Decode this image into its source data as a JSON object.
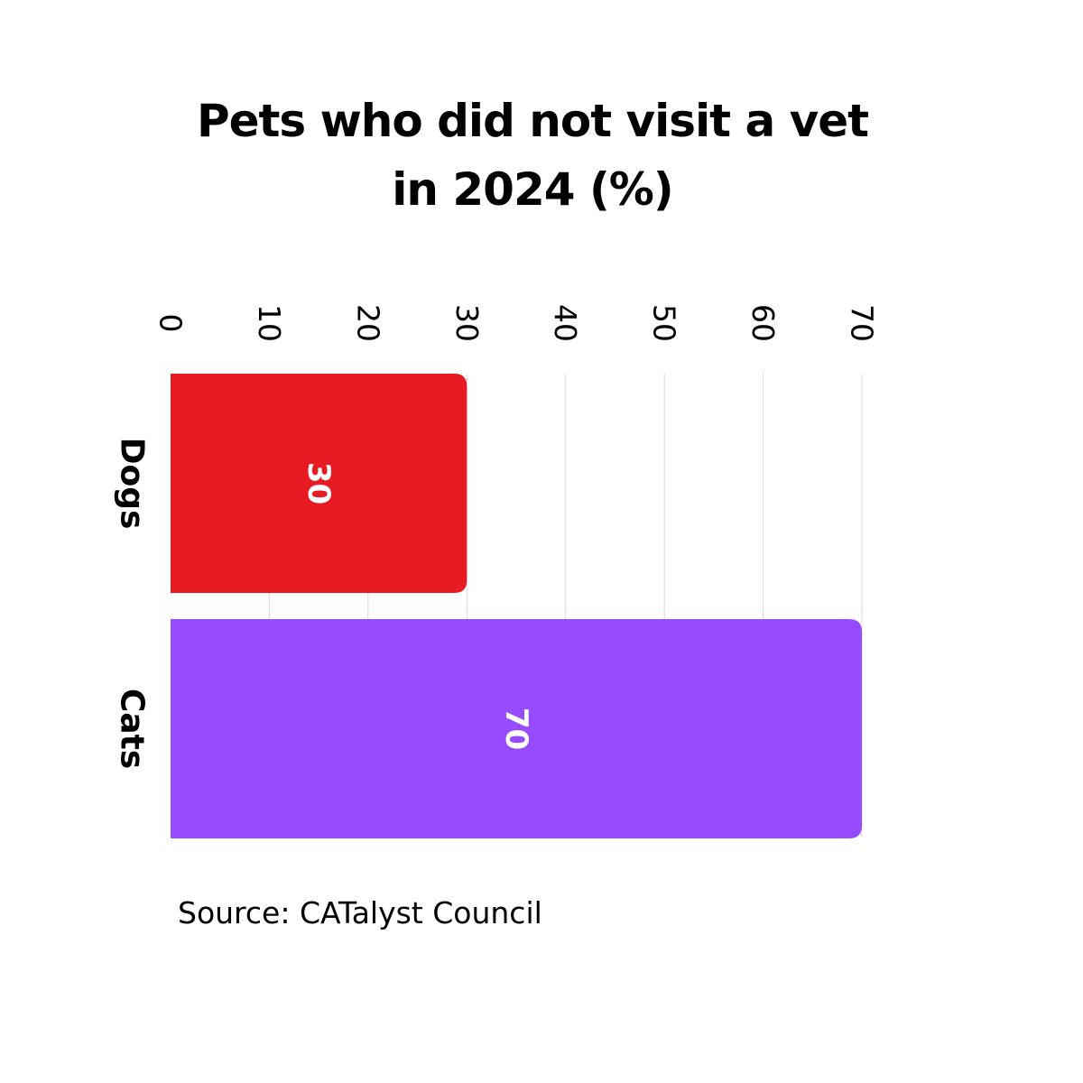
{
  "title": "Pets who did not visit a vet in 2024 (%)",
  "title_lines": [
    "Pets who did not visit a vet",
    "in 2024 (%)"
  ],
  "source": "Source: CATalyst Council",
  "colors": {
    "dogs": "#e81a22",
    "cats": "#964bff",
    "grid": "#d9d9d9",
    "text": "#000000",
    "value_label": "#ffffff"
  },
  "chart_data": {
    "type": "bar",
    "orientation": "horizontal",
    "categories": [
      "Dogs",
      "Cats"
    ],
    "values": [
      30,
      70
    ],
    "bar_colors": [
      "#e81a22",
      "#964bff"
    ],
    "data_labels": [
      "30",
      "70"
    ],
    "xlim": [
      0,
      70
    ],
    "ticks": [
      0,
      10,
      20,
      30,
      40,
      50,
      60,
      70
    ],
    "tick_labels": [
      "0",
      "10",
      "20",
      "30",
      "40",
      "50",
      "60",
      "70"
    ],
    "grid": true,
    "legend": "none",
    "xlabel": "",
    "ylabel": ""
  }
}
